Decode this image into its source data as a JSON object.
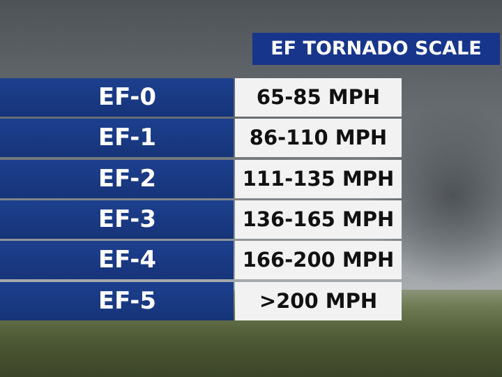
{
  "title": "EF TORNADO SCALE",
  "table": {
    "rows": [
      [
        "EF-0",
        "65-85 MPH"
      ],
      [
        "EF-1",
        "86-110 MPH"
      ],
      [
        "EF-2",
        "111-135 MPH"
      ],
      [
        "EF-3",
        "136-165 MPH"
      ],
      [
        "EF-4",
        "166-200 MPH"
      ],
      [
        "EF-5",
        ">200 MPH"
      ]
    ]
  }
}
